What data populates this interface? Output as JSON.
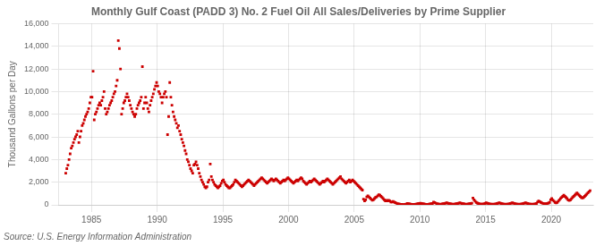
{
  "chart_data": {
    "type": "scatter",
    "title": "Monthly Gulf Coast (PADD 3) No. 2 Fuel Oil All Sales/Deliveries by Prime Supplier",
    "ylabel": "Thousand Gallons per Day",
    "source": "Source: U.S. Energy Information Administration",
    "color": "#cc0000",
    "marker": "square",
    "grid": true,
    "xlim": [
      1982.5,
      2023.2
    ],
    "xticks": [
      1985,
      1990,
      1995,
      2000,
      2005,
      2010,
      2015,
      2020
    ],
    "ylim": [
      0,
      16000
    ],
    "yticks": [
      0,
      {
        "value": 2000,
        "label": "2,000"
      },
      {
        "value": 4000,
        "label": "4,000"
      },
      {
        "value": 6000,
        "label": "6,000"
      },
      {
        "value": 8000,
        "label": "8,000"
      },
      {
        "value": 10000,
        "label": "10,000"
      },
      {
        "value": 12000,
        "label": "12,000"
      },
      {
        "value": 14000,
        "label": "14,000"
      },
      {
        "value": 16000,
        "label": "16,000"
      }
    ],
    "x": [
      1983.0416666667,
      1983.125,
      1983.2083333333,
      1983.2916666667,
      1983.375,
      1983.4583333333,
      1983.5416666667,
      1983.625,
      1983.7083333333,
      1983.7916666667,
      1983.875,
      1983.9583333333,
      1984.0416666667,
      1984.125,
      1984.2083333333,
      1984.2916666667,
      1984.375,
      1984.4583333333,
      1984.5416666667,
      1984.625,
      1984.7083333333,
      1984.7916666667,
      1984.875,
      1984.9583333333,
      1985.0416666667,
      1985.125,
      1985.2083333333,
      1985.2916666667,
      1985.375,
      1985.4583333333,
      1985.5416666667,
      1985.625,
      1985.7083333333,
      1985.7916666667,
      1985.875,
      1985.9583333333,
      1986.0416666667,
      1986.125,
      1986.2083333333,
      1986.2916666667,
      1986.375,
      1986.4583333333,
      1986.5416666667,
      1986.625,
      1986.7083333333,
      1986.7916666667,
      1986.875,
      1986.9583333333,
      1987.0416666667,
      1987.125,
      1987.2083333333,
      1987.2916666667,
      1987.375,
      1987.4583333333,
      1987.5416666667,
      1987.625,
      1987.7083333333,
      1987.7916666667,
      1987.875,
      1987.9583333333,
      1988.0416666667,
      1988.125,
      1988.2083333333,
      1988.2916666667,
      1988.375,
      1988.4583333333,
      1988.5416666667,
      1988.625,
      1988.7083333333,
      1988.7916666667,
      1988.875,
      1988.9583333333,
      1989.0416666667,
      1989.125,
      1989.2083333333,
      1989.2916666667,
      1989.375,
      1989.4583333333,
      1989.5416666667,
      1989.625,
      1989.7083333333,
      1989.7916666667,
      1989.875,
      1989.9583333333,
      1990.0416666667,
      1990.125,
      1990.2083333333,
      1990.2916666667,
      1990.375,
      1990.4583333333,
      1990.5416666667,
      1990.625,
      1990.7083333333,
      1990.7916666667,
      1990.875,
      1990.9583333333,
      1991.0416666667,
      1991.125,
      1991.2083333333,
      1991.2916666667,
      1991.375,
      1991.4583333333,
      1991.5416666667,
      1991.625,
      1991.7083333333,
      1991.7916666667,
      1991.875,
      1991.9583333333,
      1992.0416666667,
      1992.125,
      1992.2083333333,
      1992.2916666667,
      1992.375,
      1992.4583333333,
      1992.5416666667,
      1992.625,
      1992.7083333333,
      1992.7916666667,
      1992.875,
      1992.9583333333,
      1993.0416666667,
      1993.125,
      1993.2083333333,
      1993.2916666667,
      1993.375,
      1993.4583333333,
      1993.5416666667,
      1993.625,
      1993.7083333333,
      1993.7916666667,
      1993.875,
      1993.9583333333,
      1994.0416666667,
      1994.125,
      1994.2083333333,
      1994.2916666667,
      1994.375,
      1994.4583333333,
      1994.5416666667,
      1994.625,
      1994.7083333333,
      1994.7916666667,
      1994.875,
      1994.9583333333,
      1995.0416666667,
      1995.125,
      1995.2083333333,
      1995.2916666667,
      1995.375,
      1995.4583333333,
      1995.5416666667,
      1995.625,
      1995.7083333333,
      1995.7916666667,
      1995.875,
      1995.9583333333,
      1996.0416666667,
      1996.125,
      1996.2083333333,
      1996.2916666667,
      1996.375,
      1996.4583333333,
      1996.5416666667,
      1996.625,
      1996.7083333333,
      1996.7916666667,
      1996.875,
      1996.9583333333,
      1997.0416666667,
      1997.125,
      1997.2083333333,
      1997.2916666667,
      1997.375,
      1997.4583333333,
      1997.5416666667,
      1997.625,
      1997.7083333333,
      1997.7916666667,
      1997.875,
      1997.9583333333,
      1998.0416666667,
      1998.125,
      1998.2083333333,
      1998.2916666667,
      1998.375,
      1998.4583333333,
      1998.5416666667,
      1998.625,
      1998.7083333333,
      1998.7916666667,
      1998.875,
      1998.9583333333,
      1999.0416666667,
      1999.125,
      1999.2083333333,
      1999.2916666667,
      1999.375,
      1999.4583333333,
      1999.5416666667,
      1999.625,
      1999.7083333333,
      1999.7916666667,
      1999.875,
      1999.9583333333,
      2000.0416666667,
      2000.125,
      2000.2083333333,
      2000.2916666667,
      2000.375,
      2000.4583333333,
      2000.5416666667,
      2000.625,
      2000.7083333333,
      2000.7916666667,
      2000.875,
      2000.9583333333,
      2001.0416666667,
      2001.125,
      2001.2083333333,
      2001.2916666667,
      2001.375,
      2001.4583333333,
      2001.5416666667,
      2001.625,
      2001.7083333333,
      2001.7916666667,
      2001.875,
      2001.9583333333,
      2002.0416666667,
      2002.125,
      2002.2083333333,
      2002.2916666667,
      2002.375,
      2002.4583333333,
      2002.5416666667,
      2002.625,
      2002.7083333333,
      2002.7916666667,
      2002.875,
      2002.9583333333,
      2003.0416666667,
      2003.125,
      2003.2083333333,
      2003.2916666667,
      2003.375,
      2003.4583333333,
      2003.5416666667,
      2003.625,
      2003.7083333333,
      2003.7916666667,
      2003.875,
      2003.9583333333,
      2004.0416666667,
      2004.125,
      2004.2083333333,
      2004.2916666667,
      2004.375,
      2004.4583333333,
      2004.5416666667,
      2004.625,
      2004.7083333333,
      2004.7916666667,
      2004.875,
      2004.9583333333,
      2005.0416666667,
      2005.125,
      2005.2083333333,
      2005.2916666667,
      2005.375,
      2005.4583333333,
      2005.5416666667,
      2005.625,
      2005.7083333333,
      2005.7916666667,
      2005.875,
      2005.9583333333,
      2006.0416666667,
      2006.125,
      2006.2083333333,
      2006.2916666667,
      2006.375,
      2006.4583333333,
      2006.5416666667,
      2006.625,
      2006.7083333333,
      2006.7916666667,
      2006.875,
      2006.9583333333,
      2007.0416666667,
      2007.125,
      2007.2083333333,
      2007.2916666667,
      2007.375,
      2007.4583333333,
      2007.5416666667,
      2007.625,
      2007.7083333333,
      2007.7916666667,
      2007.875,
      2007.9583333333,
      2008.0416666667,
      2008.125,
      2008.2083333333,
      2008.2916666667,
      2008.375,
      2008.4583333333,
      2008.5416666667,
      2008.625,
      2008.7083333333,
      2008.7916666667,
      2008.875,
      2008.9583333333,
      2009.0416666667,
      2009.125,
      2009.2083333333,
      2009.2916666667,
      2009.375,
      2009.4583333333,
      2009.5416666667,
      2009.625,
      2009.7083333333,
      2009.7916666667,
      2009.875,
      2009.9583333333,
      2010.0416666667,
      2010.125,
      2010.2083333333,
      2010.2916666667,
      2010.375,
      2010.4583333333,
      2010.5416666667,
      2010.625,
      2010.7083333333,
      2010.7916666667,
      2010.875,
      2010.9583333333,
      2011.0416666667,
      2011.125,
      2011.2083333333,
      2011.2916666667,
      2011.375,
      2011.4583333333,
      2011.5416666667,
      2011.625,
      2011.7083333333,
      2011.7916666667,
      2011.875,
      2011.9583333333,
      2012.0416666667,
      2012.125,
      2012.2083333333,
      2012.2916666667,
      2012.375,
      2012.4583333333,
      2012.5416666667,
      2012.625,
      2012.7083333333,
      2012.7916666667,
      2012.875,
      2012.9583333333,
      2013.0416666667,
      2013.125,
      2013.2083333333,
      2013.2916666667,
      2013.375,
      2013.4583333333,
      2013.5416666667,
      2013.625,
      2013.7083333333,
      2013.7916666667,
      2013.875,
      2013.9583333333,
      2014.0416666667,
      2014.125,
      2014.2083333333,
      2014.2916666667,
      2014.375,
      2014.4583333333,
      2014.5416666667,
      2014.625,
      2014.7083333333,
      2014.7916666667,
      2014.875,
      2014.9583333333,
      2015.0416666667,
      2015.125,
      2015.2083333333,
      2015.2916666667,
      2015.375,
      2015.4583333333,
      2015.5416666667,
      2015.625,
      2015.7083333333,
      2015.7916666667,
      2015.875,
      2015.9583333333,
      2016.0416666667,
      2016.125,
      2016.2083333333,
      2016.2916666667,
      2016.375,
      2016.4583333333,
      2016.5416666667,
      2016.625,
      2016.7083333333,
      2016.7916666667,
      2016.875,
      2016.9583333333,
      2017.0416666667,
      2017.125,
      2017.2083333333,
      2017.2916666667,
      2017.375,
      2017.4583333333,
      2017.5416666667,
      2017.625,
      2017.7083333333,
      2017.7916666667,
      2017.875,
      2017.9583333333,
      2018.0416666667,
      2018.125,
      2018.2083333333,
      2018.2916666667,
      2018.375,
      2018.4583333333,
      2018.5416666667,
      2018.625,
      2018.7083333333,
      2018.7916666667,
      2018.875,
      2018.9583333333,
      2019.0416666667,
      2019.125,
      2019.2083333333,
      2019.2916666667,
      2019.375,
      2019.4583333333,
      2019.5416666667,
      2019.625,
      2019.7083333333,
      2019.7916666667,
      2019.875,
      2019.9583333333,
      2020.0416666667,
      2020.125,
      2020.2083333333,
      2020.2916666667,
      2020.375,
      2020.4583333333,
      2020.5416666667,
      2020.625,
      2020.7083333333,
      2020.7916666667,
      2020.875,
      2020.9583333333,
      2021.0416666667,
      2021.125,
      2021.2083333333,
      2021.2916666667,
      2021.375,
      2021.4583333333,
      2021.5416666667,
      2021.625,
      2021.7083333333,
      2021.7916666667,
      2021.875,
      2021.9583333333,
      2022.0416666667,
      2022.125,
      2022.2083333333,
      2022.2916666667,
      2022.375,
      2022.4583333333,
      2022.5416666667,
      2022.625,
      2022.7083333333,
      2022.7916666667,
      2022.875,
      2022.9583333333
    ],
    "values": [
      2800,
      3200,
      3500,
      4000,
      4500,
      5000,
      5200,
      5500,
      5800,
      6000,
      6200,
      6500,
      5500,
      6000,
      6500,
      7000,
      7200,
      7500,
      7800,
      8000,
      8200,
      8500,
      9000,
      9500,
      9500,
      11800,
      7500,
      8000,
      8200,
      8500,
      8800,
      9000,
      8800,
      9200,
      9500,
      10000,
      8500,
      8000,
      8200,
      8500,
      8800,
      9000,
      9200,
      9500,
      9800,
      10000,
      10500,
      11000,
      14500,
      13800,
      12000,
      8000,
      8500,
      9000,
      9200,
      9500,
      9800,
      9500,
      9200,
      8800,
      8500,
      8200,
      8000,
      7800,
      8000,
      8500,
      8800,
      9000,
      9200,
      9500,
      12200,
      8500,
      9000,
      9500,
      9000,
      8500,
      8200,
      8800,
      9200,
      9500,
      9800,
      10200,
      10500,
      10800,
      10500,
      10000,
      9800,
      9500,
      9000,
      9500,
      9800,
      10000,
      9500,
      6200,
      7800,
      10800,
      9500,
      8800,
      8200,
      7800,
      7500,
      7200,
      6800,
      7000,
      6500,
      6200,
      5800,
      5500,
      5200,
      4800,
      4500,
      4000,
      3800,
      3500,
      3200,
      3000,
      2800,
      3500,
      3600,
      3800,
      3500,
      3200,
      2800,
      2500,
      2200,
      2000,
      1800,
      1600,
      1500,
      1600,
      2000,
      2200,
      3600,
      2500,
      2200,
      2000,
      1800,
      1700,
      1600,
      1500,
      1600,
      1700,
      1900,
      2100,
      2200,
      2000,
      1800,
      1700,
      1600,
      1500,
      1500,
      1600,
      1700,
      1800,
      2000,
      2200,
      2100,
      2000,
      1900,
      1800,
      1700,
      1600,
      1700,
      1800,
      1900,
      2000,
      2100,
      2200,
      2100,
      2000,
      1900,
      1800,
      1700,
      1800,
      1900,
      2000,
      2100,
      2200,
      2300,
      2400,
      2300,
      2200,
      2100,
      2000,
      1900,
      2000,
      2100,
      2200,
      2300,
      2200,
      2100,
      2200,
      2300,
      2200,
      2100,
      2000,
      1900,
      2000,
      2100,
      2200,
      2100,
      2200,
      2300,
      2400,
      2300,
      2200,
      2100,
      2000,
      1900,
      2000,
      2100,
      2200,
      2100,
      2200,
      2300,
      2400,
      2300,
      2100,
      2000,
      1900,
      1800,
      1900,
      2000,
      2100,
      2000,
      2100,
      2200,
      2300,
      2200,
      2100,
      2000,
      1900,
      1800,
      1900,
      2000,
      2100,
      2000,
      2100,
      2200,
      2300,
      2200,
      2100,
      2000,
      1900,
      1800,
      1900,
      2000,
      2100,
      2200,
      2300,
      2400,
      2500,
      2300,
      2200,
      2100,
      2000,
      1900,
      2000,
      2100,
      2200,
      2000,
      2100,
      2200,
      2100,
      2000,
      1900,
      1800,
      1700,
      1600,
      1500,
      1400,
      1300,
      500,
      350,
      450,
      700,
      800,
      700,
      600,
      500,
      400,
      450,
      550,
      650,
      700,
      800,
      900,
      850,
      750,
      650,
      550,
      450,
      350,
      400,
      350,
      400,
      350,
      250,
      250,
      300,
      250,
      200,
      150,
      100,
      80,
      60,
      50,
      40,
      30,
      30,
      40,
      60,
      120,
      100,
      80,
      60,
      50,
      40,
      40,
      50,
      60,
      80,
      100,
      120,
      150,
      120,
      100,
      80,
      60,
      50,
      40,
      50,
      60,
      80,
      100,
      120,
      250,
      200,
      150,
      100,
      80,
      60,
      50,
      60,
      80,
      100,
      120,
      150,
      180,
      150,
      120,
      100,
      80,
      60,
      50,
      60,
      80,
      100,
      120,
      150,
      180,
      150,
      120,
      100,
      80,
      60,
      50,
      60,
      80,
      100,
      120,
      150,
      600,
      450,
      320,
      220,
      160,
      120,
      90,
      70,
      60,
      70,
      90,
      120,
      180,
      150,
      120,
      90,
      70,
      60,
      50,
      60,
      70,
      90,
      120,
      150,
      180,
      150,
      120,
      90,
      70,
      60,
      50,
      60,
      70,
      90,
      120,
      150,
      180,
      150,
      120,
      90,
      70,
      60,
      50,
      60,
      70,
      90,
      120,
      150,
      180,
      150,
      120,
      90,
      70,
      60,
      50,
      60,
      70,
      90,
      120,
      250,
      350,
      280,
      220,
      170,
      130,
      110,
      90,
      110,
      130,
      160,
      220,
      450,
      550,
      430,
      320,
      220,
      170,
      220,
      330,
      450,
      560,
      660,
      750,
      850,
      750,
      650,
      550,
      430,
      380,
      430,
      540,
      650,
      750,
      850,
      950,
      1050,
      950,
      850,
      750,
      650,
      600,
      650,
      750,
      850,
      950,
      1050,
      1150,
      1250
    ]
  }
}
